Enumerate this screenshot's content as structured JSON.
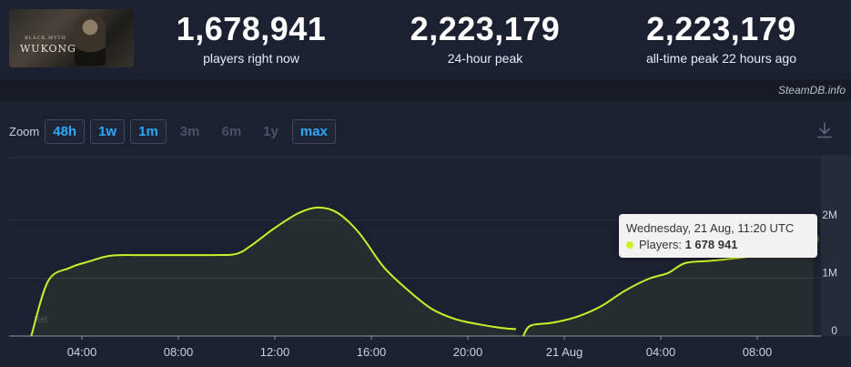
{
  "game": {
    "logo_text": "WUKONG",
    "logo_subtext": "BLACK MYTH"
  },
  "stats": [
    {
      "value": "1,678,941",
      "label": "players right now"
    },
    {
      "value": "2,223,179",
      "label": "24-hour peak"
    },
    {
      "value": "2,223,179",
      "label": "all-time peak 22 hours ago"
    }
  ],
  "credit": "SteamDB.info",
  "zoom": {
    "label": "Zoom",
    "buttons": [
      {
        "label": "48h",
        "enabled": true
      },
      {
        "label": "1w",
        "enabled": true
      },
      {
        "label": "1m",
        "enabled": true
      },
      {
        "label": "3m",
        "enabled": false
      },
      {
        "label": "6m",
        "enabled": false
      },
      {
        "label": "1y",
        "enabled": false
      },
      {
        "label": "max",
        "enabled": true
      }
    ]
  },
  "tooltip": {
    "date": "Wednesday, 21 Aug, 11:20 UTC",
    "series_label": "Players:",
    "value": "1 678 941"
  },
  "chart_data": {
    "type": "line",
    "x_ticks": [
      "04:00",
      "08:00",
      "12:00",
      "16:00",
      "20:00",
      "21 Aug",
      "04:00",
      "08:00"
    ],
    "y_ticks": [
      "0",
      "1M",
      "2M"
    ],
    "ylim": [
      0,
      2300000
    ],
    "grid": true,
    "colors": {
      "line": "#c8f12a",
      "grid": "#2a3242",
      "baseline": "#8a94a0"
    },
    "series": [
      {
        "name": "Players",
        "points": [
          {
            "t": 1.9,
            "v": 0
          },
          {
            "t": 2.6,
            "v": 950000
          },
          {
            "t": 3.5,
            "v": 1180000
          },
          {
            "t": 4.3,
            "v": 1290000
          },
          {
            "t": 5.2,
            "v": 1390000
          },
          {
            "t": 6.5,
            "v": 1400000
          },
          {
            "t": 8.0,
            "v": 1400000
          },
          {
            "t": 9.5,
            "v": 1400000
          },
          {
            "t": 10.4,
            "v": 1420000
          },
          {
            "t": 11.0,
            "v": 1560000
          },
          {
            "t": 12.0,
            "v": 1870000
          },
          {
            "t": 13.0,
            "v": 2130000
          },
          {
            "t": 13.8,
            "v": 2223179
          },
          {
            "t": 14.6,
            "v": 2130000
          },
          {
            "t": 15.5,
            "v": 1780000
          },
          {
            "t": 16.5,
            "v": 1200000
          },
          {
            "t": 17.5,
            "v": 800000
          },
          {
            "t": 18.5,
            "v": 470000
          },
          {
            "t": 19.5,
            "v": 290000
          },
          {
            "t": 20.5,
            "v": 200000
          },
          {
            "t": 21.4,
            "v": 140000
          },
          {
            "t": 22.0,
            "v": 120000
          }
        ]
      },
      {
        "name": "Players",
        "points": [
          {
            "t": 22.3,
            "v": 0
          },
          {
            "t": 22.6,
            "v": 180000
          },
          {
            "t": 23.5,
            "v": 230000
          },
          {
            "t": 24.5,
            "v": 330000
          },
          {
            "t": 25.5,
            "v": 510000
          },
          {
            "t": 26.5,
            "v": 780000
          },
          {
            "t": 27.5,
            "v": 990000
          },
          {
            "t": 28.3,
            "v": 1090000
          },
          {
            "t": 29.0,
            "v": 1260000
          },
          {
            "t": 30.0,
            "v": 1300000
          },
          {
            "t": 31.0,
            "v": 1340000
          },
          {
            "t": 32.5,
            "v": 1420000
          },
          {
            "t": 33.5,
            "v": 1500000
          },
          {
            "t": 34.33,
            "v": 1678941
          }
        ]
      }
    ]
  }
}
